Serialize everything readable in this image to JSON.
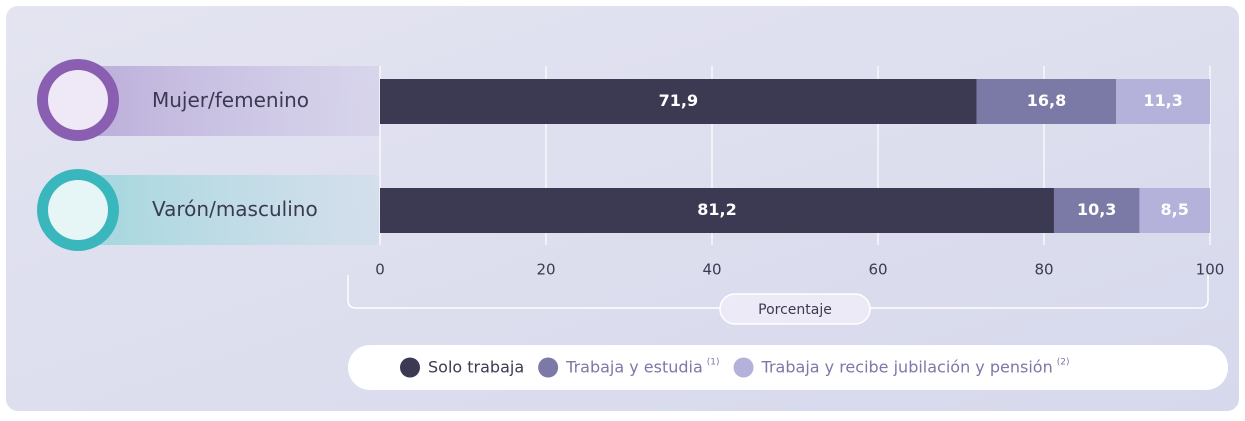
{
  "chart_data": {
    "type": "stacked-bar-horizontal",
    "categories": [
      "Mujer/femenino",
      "Varón/masculino"
    ],
    "series": [
      {
        "name": "Solo trabaja",
        "color": "#3b3a52",
        "values": [
          71.9,
          81.2
        ],
        "value_labels": [
          "71,9",
          "81,2"
        ]
      },
      {
        "name": "Trabaja y estudia",
        "note": "(1)",
        "color": "#7b79a6",
        "values": [
          16.8,
          10.3
        ],
        "value_labels": [
          "16,8",
          "10,3"
        ]
      },
      {
        "name": "Trabaja y recibe jubilación y pensión",
        "note": "(2)",
        "color": "#b4b1db",
        "values": [
          11.3,
          8.5
        ],
        "value_labels": [
          "11,3",
          "8,5"
        ]
      }
    ],
    "xlabel": "Porcentaje",
    "xlim": [
      0,
      100
    ],
    "xticks": [
      0,
      20,
      40,
      60,
      80,
      100
    ],
    "grid": true
  }
}
